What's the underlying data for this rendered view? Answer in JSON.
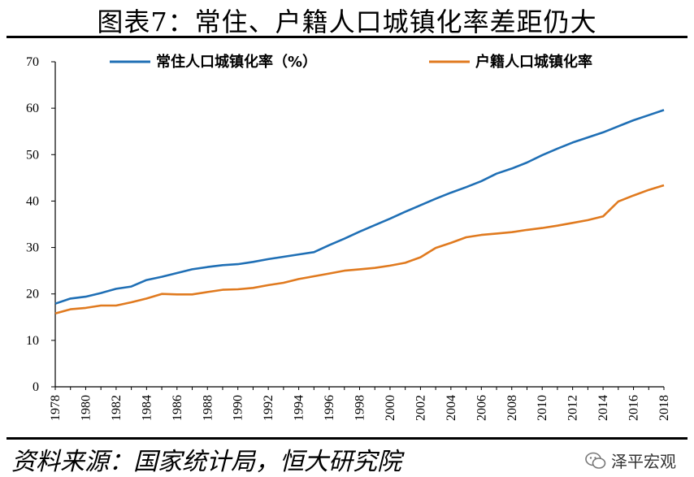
{
  "header": {
    "title": "图表7：常住、户籍人口城镇化率差距仍大"
  },
  "footer": {
    "source": "资料来源：国家统计局，恒大研究院",
    "brand": "泽平宏观",
    "brand_icon": "wechat-icon"
  },
  "colors": {
    "series1": "#1f6fb5",
    "series2": "#e07a1f",
    "axis": "#000000"
  },
  "chart_data": {
    "type": "line",
    "title": "常住、户籍人口城镇化率差距仍大",
    "xlabel": "",
    "ylabel": "",
    "ylim": [
      0,
      70
    ],
    "yticks": [
      0,
      10,
      20,
      30,
      40,
      50,
      60,
      70
    ],
    "x": [
      1978,
      1979,
      1980,
      1981,
      1982,
      1983,
      1984,
      1985,
      1986,
      1987,
      1988,
      1989,
      1990,
      1991,
      1992,
      1993,
      1994,
      1995,
      1996,
      1997,
      1998,
      1999,
      2000,
      2001,
      2002,
      2003,
      2004,
      2005,
      2006,
      2007,
      2008,
      2009,
      2010,
      2011,
      2012,
      2013,
      2014,
      2015,
      2016,
      2017,
      2018
    ],
    "xticks": [
      "1978",
      "1980",
      "1982",
      "1984",
      "1986",
      "1988",
      "1990",
      "1992",
      "1994",
      "1996",
      "1998",
      "2000",
      "2002",
      "2004",
      "2006",
      "2008",
      "2010",
      "2012",
      "2014",
      "2016",
      "2018"
    ],
    "legend_position": "top",
    "series": [
      {
        "name": "常住人口城镇化率（%）",
        "values": [
          17.9,
          19.0,
          19.4,
          20.2,
          21.1,
          21.6,
          23.0,
          23.7,
          24.5,
          25.3,
          25.8,
          26.2,
          26.4,
          26.9,
          27.5,
          28.0,
          28.5,
          29.0,
          30.5,
          31.9,
          33.4,
          34.8,
          36.2,
          37.7,
          39.1,
          40.5,
          41.8,
          43.0,
          44.3,
          45.9,
          47.0,
          48.3,
          49.9,
          51.3,
          52.6,
          53.7,
          54.8,
          56.1,
          57.4,
          58.5,
          59.6
        ]
      },
      {
        "name": "户籍人口城镇化率",
        "values": [
          15.8,
          16.7,
          17.0,
          17.5,
          17.5,
          18.2,
          19.0,
          20.0,
          19.9,
          19.9,
          20.4,
          20.9,
          21.0,
          21.3,
          21.9,
          22.4,
          23.2,
          23.8,
          24.4,
          25.0,
          25.3,
          25.6,
          26.1,
          26.7,
          27.9,
          29.9,
          31.0,
          32.2,
          32.7,
          33.0,
          33.3,
          33.8,
          34.2,
          34.7,
          35.3,
          35.9,
          36.7,
          39.9,
          41.2,
          42.4,
          43.4
        ]
      }
    ]
  }
}
